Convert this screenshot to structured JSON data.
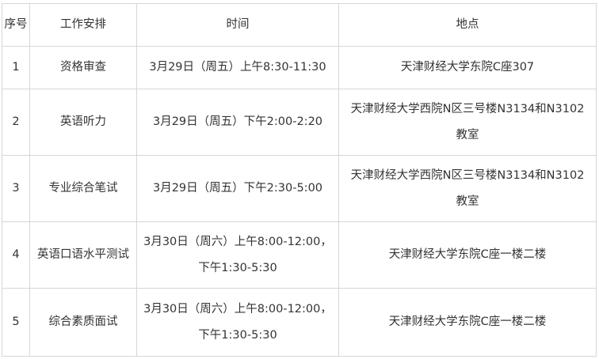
{
  "table": {
    "headers": [
      "序号",
      "工作安排",
      "时间",
      "地点"
    ],
    "rows": [
      {
        "no": "1",
        "task": "资格审查",
        "time": [
          "3月29日（周五）上午8:30-11:30"
        ],
        "place": [
          "天津财经大学东院C座307"
        ]
      },
      {
        "no": "2",
        "task": "英语听力",
        "time": [
          "3月29日（周五）下午2:00-2:20"
        ],
        "place": [
          "天津财经大学西院N区三号楼N3134和N3102",
          "教室"
        ]
      },
      {
        "no": "3",
        "task": "专业综合笔试",
        "time": [
          "3月29日（周五）下午2:30-5:00"
        ],
        "place": [
          "天津财经大学西院N区三号楼N3134和N3102",
          "教室"
        ]
      },
      {
        "no": "4",
        "task": "英语口语水平测试",
        "time": [
          "3月30日（周六）上午8:00-12:00，",
          "下午1:30-5:30"
        ],
        "place": [
          "天津财经大学东院C座一楼二楼"
        ]
      },
      {
        "no": "5",
        "task": "综合素质面试",
        "time": [
          "3月30日（周六）上午8:00-12:00，",
          "下午1:30-5:30"
        ],
        "place": [
          "天津财经大学东院C座一楼二楼"
        ]
      }
    ]
  }
}
